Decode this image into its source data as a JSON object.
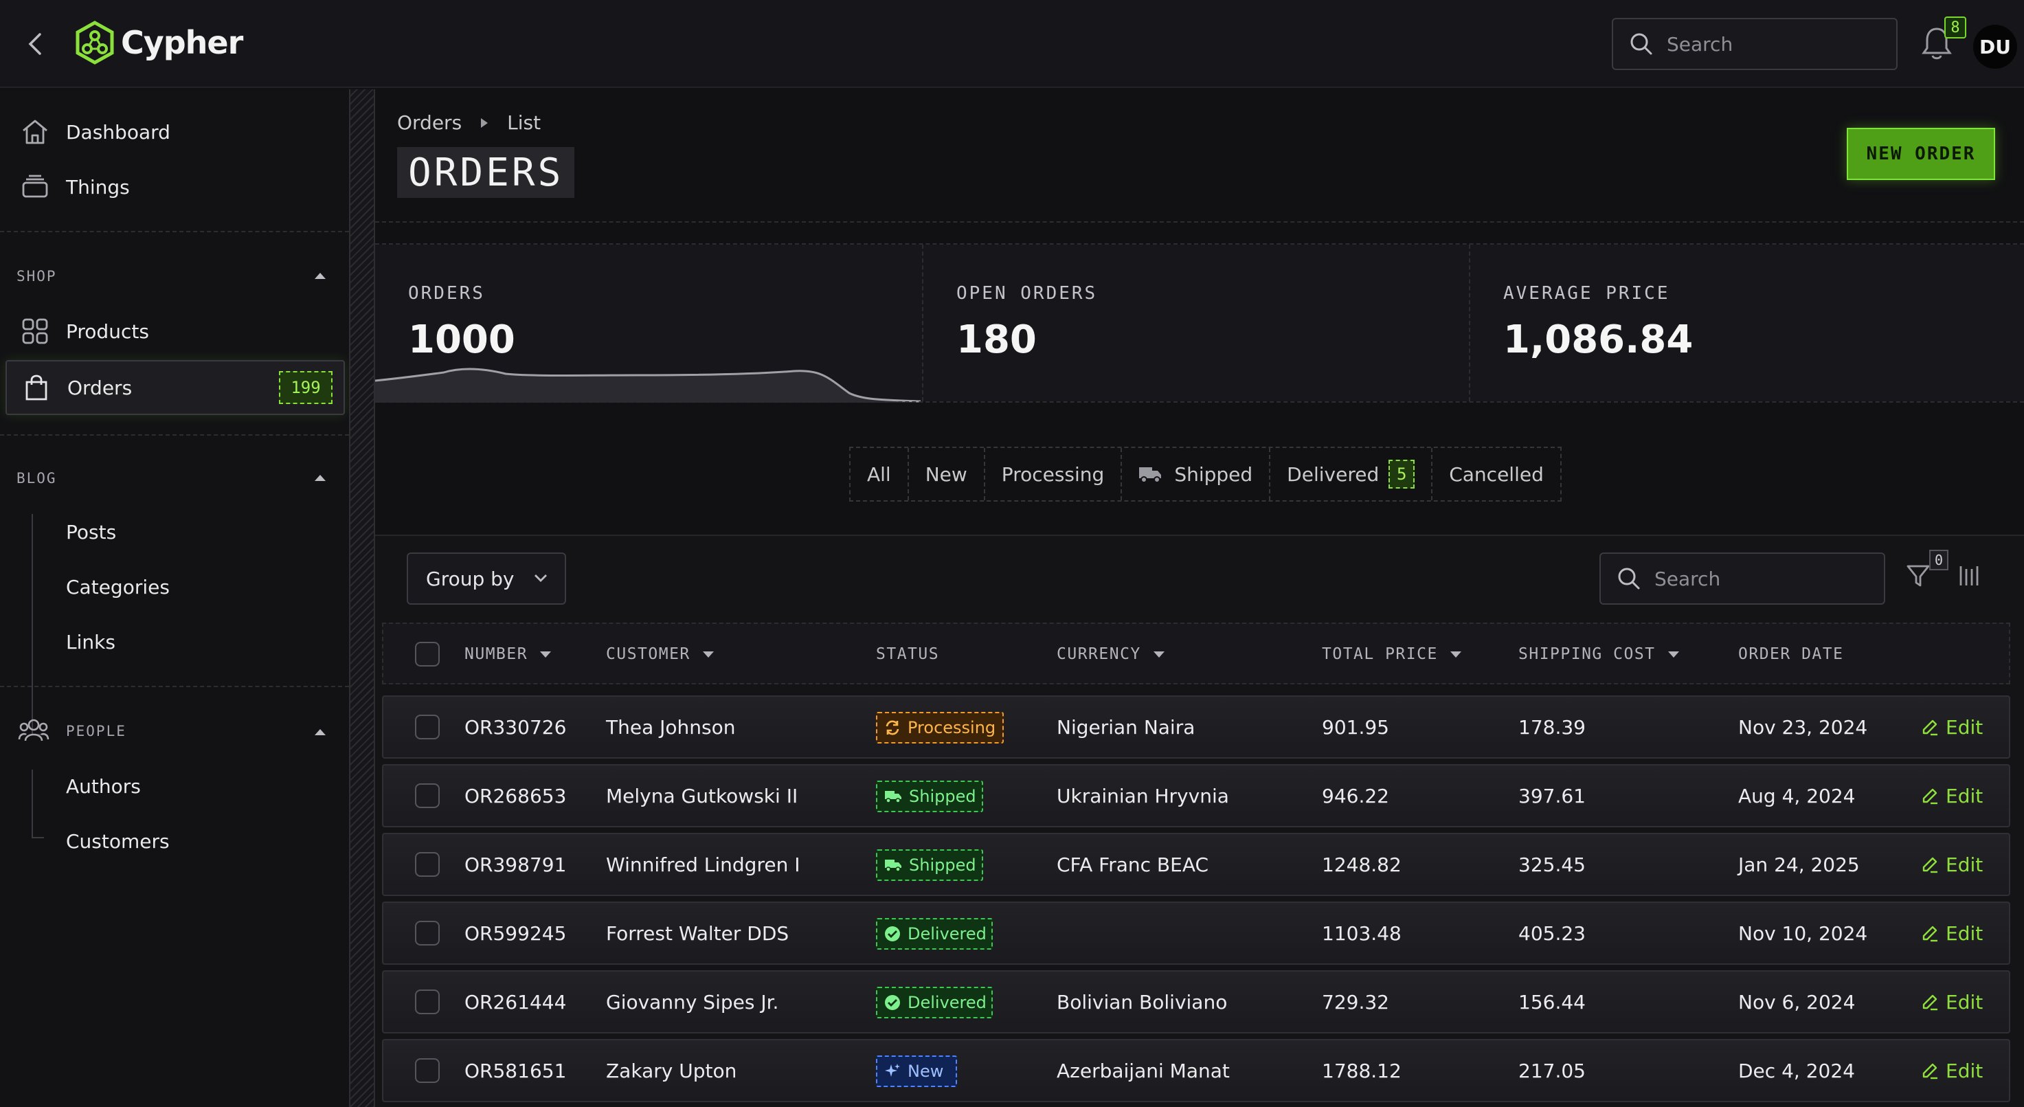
{
  "app": {
    "name": "Cypher"
  },
  "header": {
    "search_placeholder": "Search",
    "notifications_count": "8",
    "avatar_initials": "DU"
  },
  "sidebar": {
    "top_items": [
      {
        "label": "Dashboard",
        "icon": "home-icon"
      },
      {
        "label": "Things",
        "icon": "layers-icon"
      }
    ],
    "shop": {
      "title": "SHOP",
      "items": [
        {
          "label": "Products",
          "icon": "grid-icon"
        },
        {
          "label": "Orders",
          "icon": "bag-icon",
          "badge": "199",
          "active": true
        }
      ]
    },
    "blog": {
      "title": "BLOG",
      "items": [
        {
          "label": "Posts"
        },
        {
          "label": "Categories"
        },
        {
          "label": "Links"
        }
      ]
    },
    "people": {
      "title": "PEOPLE",
      "icon": "people-icon",
      "items": [
        {
          "label": "Authors"
        },
        {
          "label": "Customers"
        }
      ]
    }
  },
  "page": {
    "breadcrumb": [
      "Orders",
      "List"
    ],
    "title": "ORDERS",
    "new_button": "NEW ORDER"
  },
  "stats": [
    {
      "label": "ORDERS",
      "value": "1000"
    },
    {
      "label": "OPEN ORDERS",
      "value": "180"
    },
    {
      "label": "AVERAGE PRICE",
      "value": "1,086.84"
    }
  ],
  "tabs": [
    {
      "label": "All"
    },
    {
      "label": "New"
    },
    {
      "label": "Processing"
    },
    {
      "label": "Shipped",
      "icon": "truck-icon"
    },
    {
      "label": "Delivered",
      "badge": "5"
    },
    {
      "label": "Cancelled"
    }
  ],
  "toolbar": {
    "group_by_label": "Group by",
    "search_placeholder": "Search",
    "filter_count": "0"
  },
  "table": {
    "columns": [
      "NUMBER",
      "CUSTOMER",
      "STATUS",
      "CURRENCY",
      "TOTAL PRICE",
      "SHIPPING COST",
      "ORDER DATE"
    ],
    "edit_label": "Edit",
    "rows": [
      {
        "number": "OR330726",
        "customer": "Thea Johnson",
        "status": "Processing",
        "currency": "Nigerian Naira",
        "total": "901.95",
        "shipping": "178.39",
        "date": "Nov 23, 2024"
      },
      {
        "number": "OR268653",
        "customer": "Melyna Gutkowski II",
        "status": "Shipped",
        "currency": "Ukrainian Hryvnia",
        "total": "946.22",
        "shipping": "397.61",
        "date": "Aug 4, 2024"
      },
      {
        "number": "OR398791",
        "customer": "Winnifred Lindgren I",
        "status": "Shipped",
        "currency": "CFA Franc BEAC",
        "total": "1248.82",
        "shipping": "325.45",
        "date": "Jan 24, 2025"
      },
      {
        "number": "OR599245",
        "customer": "Forrest Walter DDS",
        "status": "Delivered",
        "currency": "",
        "total": "1103.48",
        "shipping": "405.23",
        "date": "Nov 10, 2024"
      },
      {
        "number": "OR261444",
        "customer": "Giovanny Sipes Jr.",
        "status": "Delivered",
        "currency": "Bolivian Boliviano",
        "total": "729.32",
        "shipping": "156.44",
        "date": "Nov 6, 2024"
      },
      {
        "number": "OR581651",
        "customer": "Zakary Upton",
        "status": "New",
        "currency": "Azerbaijani Manat",
        "total": "1788.12",
        "shipping": "217.05",
        "date": "Dec 4, 2024"
      }
    ]
  },
  "colors": {
    "accent": "#7fe33a",
    "processing": "#f29a2a",
    "shipped": "#3fc653",
    "delivered": "#3fc653",
    "new": "#4f84ff"
  }
}
